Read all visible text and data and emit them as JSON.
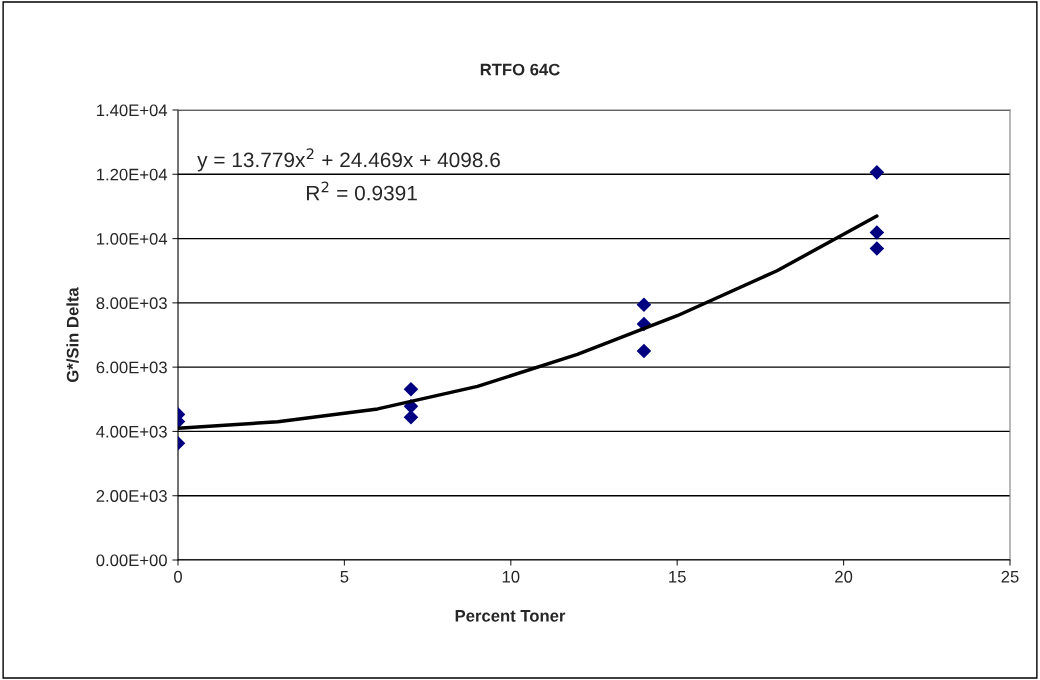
{
  "chart_data": {
    "type": "scatter",
    "title": "RTFO 64C",
    "xlabel": "Percent Toner",
    "ylabel": "G*/Sin Delta",
    "series": [
      {
        "color": "#000080",
        "marker": "diamond",
        "x": [
          0,
          0,
          0,
          7,
          7,
          7,
          14,
          14,
          14,
          21,
          21,
          21
        ],
        "values": [
          4530,
          4310,
          3630,
          5310,
          4780,
          4440,
          7940,
          7340,
          6500,
          12060,
          10190,
          9690
        ]
      },
      {
        "type": "line",
        "color": "#000000",
        "marker": "none",
        "x": [
          0,
          3,
          6,
          9,
          12,
          15,
          18,
          21
        ],
        "values": [
          4100,
          4300,
          4700,
          5400,
          6400,
          7600,
          9000,
          10700
        ]
      }
    ],
    "xlim": [
      0,
      25
    ],
    "xticks": [
      0,
      5,
      10,
      15,
      20,
      25
    ],
    "ylim": [
      0,
      14000
    ],
    "yticks": [
      {
        "value": 0,
        "label": "0.00E+00"
      },
      {
        "value": 2000,
        "label": "2.00E+03"
      },
      {
        "value": 4000,
        "label": "4.00E+03"
      },
      {
        "value": 6000,
        "label": "6.00E+03"
      },
      {
        "value": 8000,
        "label": "8.00E+03"
      },
      {
        "value": 10000,
        "label": "1.00E+04"
      },
      {
        "value": 12000,
        "label": "1.20E+04"
      },
      {
        "value": 14000,
        "label": "1.40E+04"
      }
    ],
    "grid": "y",
    "legend": false,
    "annotations": [
      "y = 13.779x$^{2}$ + 24.469x + 4098.6",
      "R$^{2}$ = 0.9391"
    ]
  }
}
